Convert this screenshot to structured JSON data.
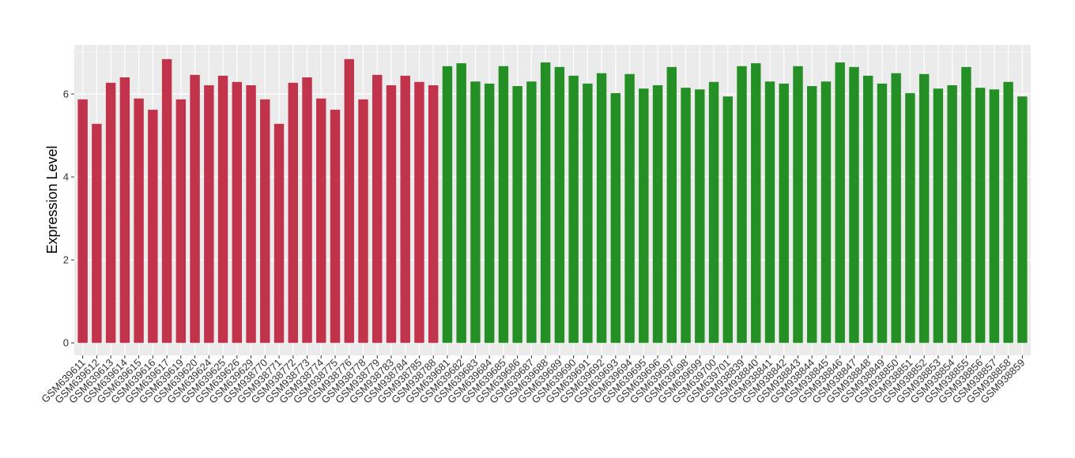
{
  "chart_data": {
    "type": "bar",
    "y_label": "Expression Level",
    "categories": [
      "GSM639611",
      "GSM639612",
      "GSM639613",
      "GSM639614",
      "GSM639615",
      "GSM639616",
      "GSM639617",
      "GSM639619",
      "GSM639620",
      "GSM639624",
      "GSM639625",
      "GSM639626",
      "GSM639629",
      "GSM938770",
      "GSM938771",
      "GSM938772",
      "GSM938773",
      "GSM938774",
      "GSM938775",
      "GSM938776",
      "GSM938778",
      "GSM938779",
      "GSM938783",
      "GSM938784",
      "GSM938785",
      "GSM938788",
      "GSM639681",
      "GSM639682",
      "GSM639683",
      "GSM639684",
      "GSM639685",
      "GSM639686",
      "GSM639687",
      "GSM639688",
      "GSM639689",
      "GSM639690",
      "GSM639691",
      "GSM639692",
      "GSM639693",
      "GSM639694",
      "GSM639695",
      "GSM639696",
      "GSM639697",
      "GSM639698",
      "GSM639699",
      "GSM639700",
      "GSM639701",
      "GSM938839",
      "GSM938840",
      "GSM938841",
      "GSM938842",
      "GSM938843",
      "GSM938844",
      "GSM938845",
      "GSM938846",
      "GSM938847",
      "GSM938848",
      "GSM938849",
      "GSM938850",
      "GSM938851",
      "GSM938852",
      "GSM938853",
      "GSM938854",
      "GSM938855",
      "GSM938856",
      "GSM938857",
      "GSM938858",
      "GSM938859"
    ],
    "values": [
      5.87,
      5.28,
      6.27,
      6.4,
      5.89,
      5.62,
      6.84,
      5.87,
      6.46,
      6.21,
      6.44,
      6.29,
      6.21,
      5.87,
      5.28,
      6.27,
      6.4,
      5.89,
      5.62,
      6.84,
      5.87,
      6.46,
      6.21,
      6.44,
      6.29,
      6.21,
      6.67,
      6.74,
      6.3,
      6.25,
      6.67,
      6.19,
      6.3,
      6.76,
      6.65,
      6.44,
      6.25,
      6.5,
      6.02,
      6.48,
      6.13,
      6.21,
      6.65,
      6.15,
      6.11,
      6.29,
      5.94,
      6.67,
      6.74,
      6.3,
      6.25,
      6.67,
      6.19,
      6.3,
      6.76,
      6.65,
      6.44,
      6.25,
      6.5,
      6.02,
      6.48,
      6.13,
      6.21,
      6.65,
      6.15,
      6.11,
      6.29,
      5.94
    ],
    "colors": [
      "#c0334a",
      "#c0334a",
      "#c0334a",
      "#c0334a",
      "#c0334a",
      "#c0334a",
      "#c0334a",
      "#c0334a",
      "#c0334a",
      "#c0334a",
      "#c0334a",
      "#c0334a",
      "#c0334a",
      "#c0334a",
      "#c0334a",
      "#c0334a",
      "#c0334a",
      "#c0334a",
      "#c0334a",
      "#c0334a",
      "#c0334a",
      "#c0334a",
      "#c0334a",
      "#c0334a",
      "#c0334a",
      "#c0334a",
      "#248f24",
      "#248f24",
      "#248f24",
      "#248f24",
      "#248f24",
      "#248f24",
      "#248f24",
      "#248f24",
      "#248f24",
      "#248f24",
      "#248f24",
      "#248f24",
      "#248f24",
      "#248f24",
      "#248f24",
      "#248f24",
      "#248f24",
      "#248f24",
      "#248f24",
      "#248f24",
      "#248f24",
      "#248f24",
      "#248f24",
      "#248f24",
      "#248f24",
      "#248f24",
      "#248f24",
      "#248f24",
      "#248f24",
      "#248f24",
      "#248f24",
      "#248f24",
      "#248f24",
      "#248f24",
      "#248f24",
      "#248f24",
      "#248f24",
      "#248f24",
      "#248f24",
      "#248f24",
      "#248f24",
      "#248f24"
    ],
    "ylim": [
      -0.3,
      7.18
    ],
    "yticks": [
      0,
      2,
      4,
      6
    ],
    "grid": true
  }
}
